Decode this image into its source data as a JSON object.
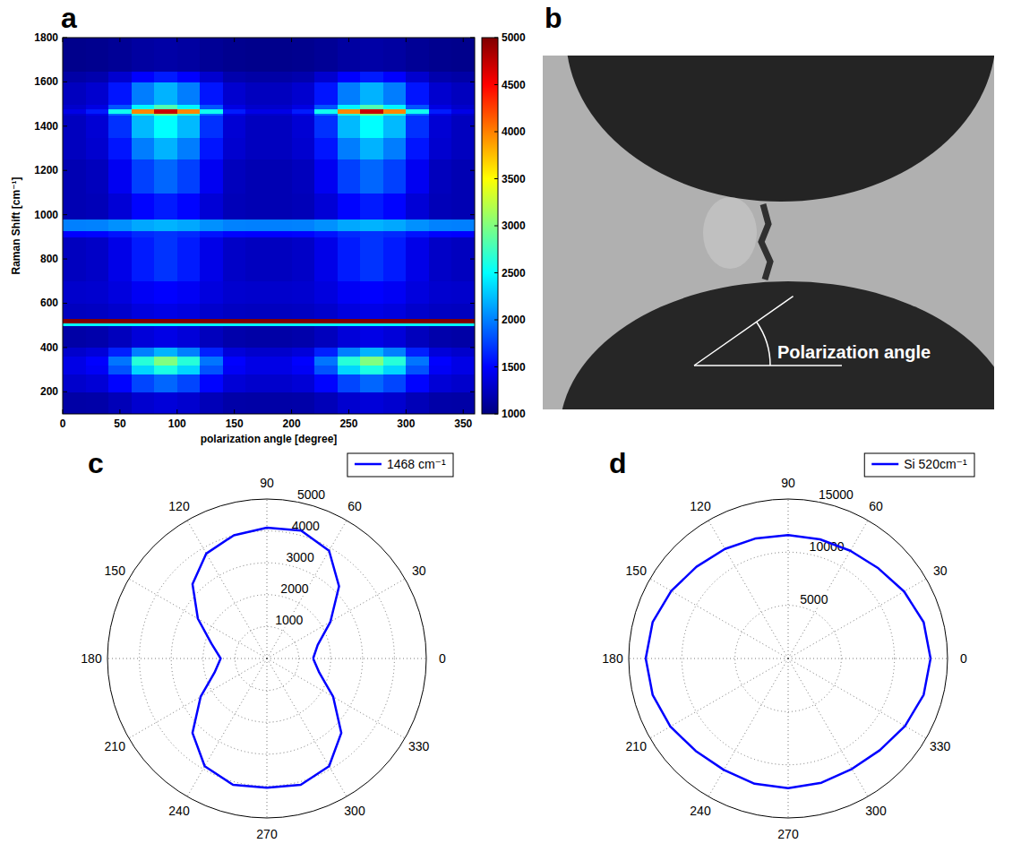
{
  "chart_data": [
    {
      "type": "heatmap",
      "panel": "a",
      "xlabel": "polarization angle [degree]",
      "ylabel": "Raman Shift [cm⁻¹]",
      "xlim": [
        0,
        360
      ],
      "ylim": [
        100,
        1800
      ],
      "xticks": [
        0,
        50,
        100,
        150,
        200,
        250,
        300,
        350
      ],
      "yticks": [
        200,
        400,
        600,
        800,
        1000,
        1200,
        1400,
        1600,
        1800
      ],
      "x_edges": [
        0,
        20,
        40,
        60,
        80,
        100,
        120,
        140,
        160,
        180,
        200,
        220,
        240,
        260,
        280,
        300,
        320,
        340,
        360
      ],
      "y_edges": [
        100,
        200,
        280,
        320,
        360,
        400,
        500,
        510,
        530,
        600,
        700,
        900,
        930,
        980,
        1100,
        1250,
        1350,
        1450,
        1460,
        1480,
        1500,
        1600,
        1650,
        1800
      ],
      "cells": [
        [
          1150,
          1160,
          1220,
          1310,
          1350,
          1310,
          1220,
          1160,
          1150,
          1150,
          1160,
          1220,
          1310,
          1350,
          1310,
          1220,
          1160,
          1150
        ],
        [
          1300,
          1340,
          1510,
          1770,
          1900,
          1770,
          1510,
          1340,
          1300,
          1300,
          1340,
          1510,
          1770,
          1900,
          1770,
          1510,
          1340,
          1300
        ],
        [
          1400,
          1470,
          1820,
          2340,
          2600,
          2340,
          1820,
          1470,
          1400,
          1400,
          1470,
          1820,
          2340,
          2600,
          2340,
          1820,
          1470,
          1400
        ],
        [
          1400,
          1500,
          1960,
          2650,
          3000,
          2650,
          1960,
          1500,
          1400,
          1400,
          1500,
          1960,
          2650,
          3000,
          2650,
          1960,
          1500,
          1400
        ],
        [
          1300,
          1350,
          1620,
          2000,
          2200,
          2000,
          1620,
          1350,
          1300,
          1300,
          1350,
          1620,
          2000,
          2200,
          2000,
          1620,
          1350,
          1300
        ],
        [
          1150,
          1170,
          1240,
          1350,
          1400,
          1350,
          1240,
          1170,
          1150,
          1150,
          1170,
          1240,
          1350,
          1400,
          1350,
          1240,
          1170,
          1150
        ],
        [
          2500,
          2500,
          2500,
          2500,
          2500,
          2500,
          2500,
          2500,
          2500,
          2500,
          2500,
          2500,
          2500,
          2500,
          2500,
          2500,
          2500,
          2500
        ],
        [
          5000,
          5000,
          5000,
          5000,
          5000,
          5000,
          5000,
          5000,
          5000,
          5000,
          5000,
          5000,
          5000,
          5000,
          5000,
          5000,
          5000,
          5000
        ],
        [
          1250,
          1260,
          1300,
          1370,
          1400,
          1370,
          1300,
          1260,
          1250,
          1250,
          1260,
          1300,
          1370,
          1400,
          1370,
          1300,
          1260,
          1250
        ],
        [
          1300,
          1310,
          1370,
          1460,
          1500,
          1460,
          1370,
          1310,
          1300,
          1300,
          1310,
          1370,
          1460,
          1500,
          1460,
          1370,
          1310,
          1300
        ],
        [
          1250,
          1280,
          1410,
          1600,
          1700,
          1600,
          1410,
          1280,
          1250,
          1250,
          1280,
          1410,
          1600,
          1700,
          1600,
          1410,
          1280,
          1250
        ],
        [
          1500,
          1510,
          1570,
          1660,
          1700,
          1660,
          1570,
          1510,
          1500,
          1500,
          1510,
          1570,
          1660,
          1700,
          1660,
          1570,
          1510,
          1500
        ],
        [
          2000,
          2010,
          2070,
          2160,
          2200,
          2160,
          2070,
          2010,
          2000,
          2000,
          2010,
          2070,
          2160,
          2200,
          2160,
          2070,
          2010,
          2000
        ],
        [
          1200,
          1220,
          1340,
          1510,
          1600,
          1510,
          1340,
          1220,
          1200,
          1200,
          1220,
          1340,
          1510,
          1600,
          1510,
          1340,
          1220,
          1200
        ],
        [
          1200,
          1240,
          1450,
          1750,
          1900,
          1750,
          1450,
          1240,
          1200,
          1200,
          1240,
          1450,
          1750,
          1900,
          1750,
          1450,
          1240,
          1200
        ],
        [
          1250,
          1310,
          1580,
          1990,
          2200,
          1990,
          1580,
          1310,
          1250,
          1250,
          1310,
          1580,
          1990,
          2200,
          1990,
          1580,
          1310,
          1250
        ],
        [
          1250,
          1330,
          1690,
          2230,
          2500,
          2230,
          1690,
          1330,
          1250,
          1250,
          1330,
          1690,
          2230,
          2500,
          2230,
          1690,
          1330,
          1250
        ],
        [
          1300,
          1400,
          1900,
          2630,
          3000,
          2630,
          1900,
          1400,
          1300,
          1300,
          1400,
          1900,
          2630,
          3000,
          2630,
          1900,
          1400,
          1300
        ],
        [
          1400,
          1600,
          2560,
          3970,
          4700,
          3970,
          2560,
          1600,
          1400,
          1400,
          1600,
          2560,
          3970,
          4700,
          3970,
          2560,
          1600,
          1400
        ],
        [
          1300,
          1390,
          1830,
          2470,
          2800,
          2470,
          1830,
          1390,
          1300,
          1300,
          1390,
          1830,
          2470,
          2800,
          2470,
          1830,
          1390,
          1300
        ],
        [
          1250,
          1310,
          1580,
          1990,
          2200,
          1990,
          1580,
          1310,
          1250,
          1250,
          1310,
          1580,
          1990,
          2200,
          1990,
          1580,
          1310,
          1250
        ],
        [
          1150,
          1180,
          1310,
          1500,
          1600,
          1500,
          1310,
          1180,
          1150,
          1150,
          1180,
          1310,
          1500,
          1600,
          1500,
          1310,
          1180,
          1150
        ],
        [
          1050,
          1060,
          1090,
          1130,
          1150,
          1130,
          1090,
          1060,
          1050,
          1050,
          1060,
          1090,
          1130,
          1150,
          1130,
          1090,
          1060,
          1050
        ]
      ],
      "color_range": [
        1000,
        5000
      ],
      "color_ticks": [
        1000,
        1500,
        2000,
        2500,
        3000,
        3500,
        4000,
        4500,
        5000
      ]
    },
    {
      "type": "image",
      "panel": "b",
      "annotations": [
        "Polarization angle"
      ]
    },
    {
      "type": "polar",
      "panel": "c",
      "legend": "top-right",
      "grid": true,
      "xlim": [
        0,
        360
      ],
      "xticks": [
        0,
        30,
        60,
        90,
        120,
        150,
        180,
        210,
        240,
        270,
        300,
        330
      ],
      "ylim": [
        0,
        5000
      ],
      "yticks": [
        1000,
        2000,
        3000,
        4000,
        5000
      ],
      "x": [
        0,
        15,
        30,
        45,
        60,
        75,
        90,
        105,
        120,
        135,
        150,
        165,
        180,
        195,
        210,
        225,
        240,
        255,
        270,
        285,
        300,
        315,
        330,
        345,
        360
      ],
      "series": [
        {
          "name": "1468 cm⁻¹",
          "color": "#0000ff",
          "values": [
            1450,
            1650,
            2300,
            3200,
            3900,
            4150,
            4100,
            4000,
            3800,
            3300,
            2500,
            1800,
            1450,
            1700,
            2400,
            3300,
            3900,
            4100,
            4050,
            4100,
            3900,
            3300,
            2400,
            1700,
            1450
          ]
        }
      ]
    },
    {
      "type": "polar",
      "panel": "d",
      "legend": "top-right",
      "grid": true,
      "xlim": [
        0,
        360
      ],
      "xticks": [
        0,
        30,
        60,
        90,
        120,
        150,
        180,
        210,
        240,
        270,
        300,
        330
      ],
      "ylim": [
        0,
        15000
      ],
      "yticks": [
        5000,
        10000,
        15000
      ],
      "x": [
        0,
        15,
        30,
        45,
        60,
        75,
        90,
        105,
        120,
        135,
        150,
        165,
        180,
        195,
        210,
        225,
        240,
        255,
        270,
        285,
        300,
        315,
        330,
        345,
        360
      ],
      "series": [
        {
          "name": "Si 520cm⁻¹",
          "color": "#0000ff",
          "values": [
            13400,
            13200,
            12600,
            12000,
            11700,
            11600,
            11600,
            11700,
            11900,
            12200,
            12700,
            13200,
            13400,
            13200,
            12800,
            12300,
            12100,
            12200,
            12200,
            12100,
            12000,
            12200,
            12700,
            13200,
            13400
          ]
        }
      ]
    }
  ]
}
